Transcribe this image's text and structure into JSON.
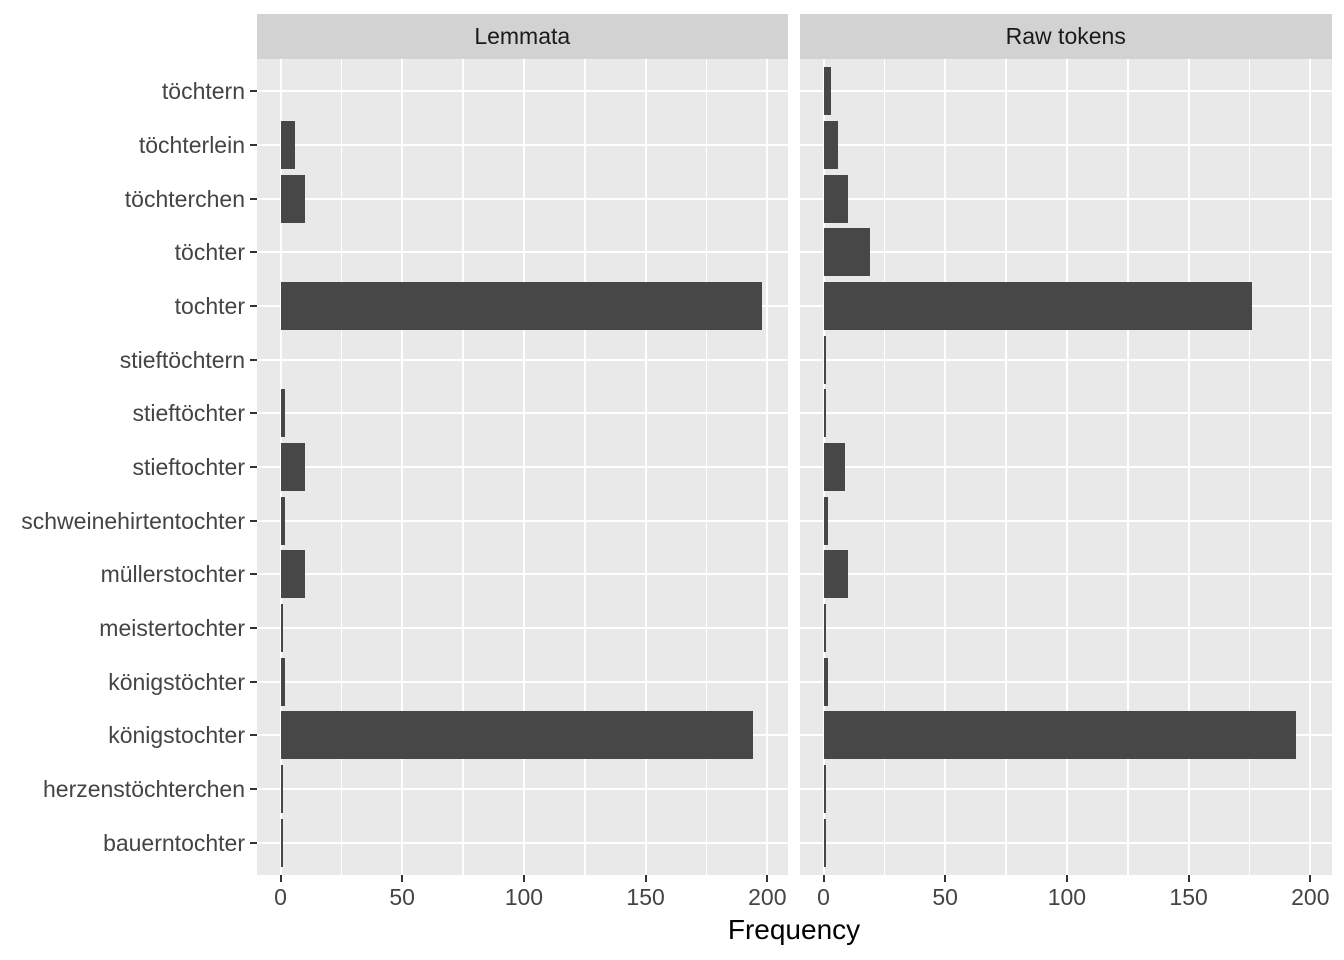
{
  "chart_data": {
    "type": "bar",
    "orientation": "horizontal",
    "title": "",
    "xlabel": "Frequency",
    "ylabel": "",
    "facets": [
      "Lemmata",
      "Raw tokens"
    ],
    "categories": [
      "töchtern",
      "töchterlein",
      "töchterchen",
      "töchter",
      "tochter",
      "stieftöchtern",
      "stieftöchter",
      "stieftochter",
      "schweinehirtentochter",
      "müllerstochter",
      "meistertochter",
      "königstöchter",
      "königstochter",
      "herzenstöchterchen",
      "bauerntochter"
    ],
    "series": [
      {
        "name": "Lemmata",
        "values": [
          0,
          6,
          10,
          0,
          198,
          0,
          2,
          10,
          2,
          10,
          1,
          2,
          194,
          1,
          1
        ]
      },
      {
        "name": "Raw tokens",
        "values": [
          3,
          6,
          10,
          19,
          176,
          1,
          1,
          9,
          2,
          10,
          1,
          2,
          194,
          1,
          1
        ]
      }
    ],
    "x_ticks": [
      0,
      50,
      100,
      150,
      200
    ],
    "x_minor_gridlines": [
      25,
      75,
      125,
      175
    ],
    "xlim": [
      -9.7,
      208.3
    ],
    "grid": true,
    "legend": "none",
    "colors": {
      "bar": "#474747",
      "panel_background": "#E9E9E9",
      "strip_background": "#D2D2D2",
      "gridline": "#ffffff",
      "axis_text": "#444444",
      "strip_text": "#1a1a1a",
      "tick_mark": "#333333",
      "axis_title": "#000000"
    }
  }
}
